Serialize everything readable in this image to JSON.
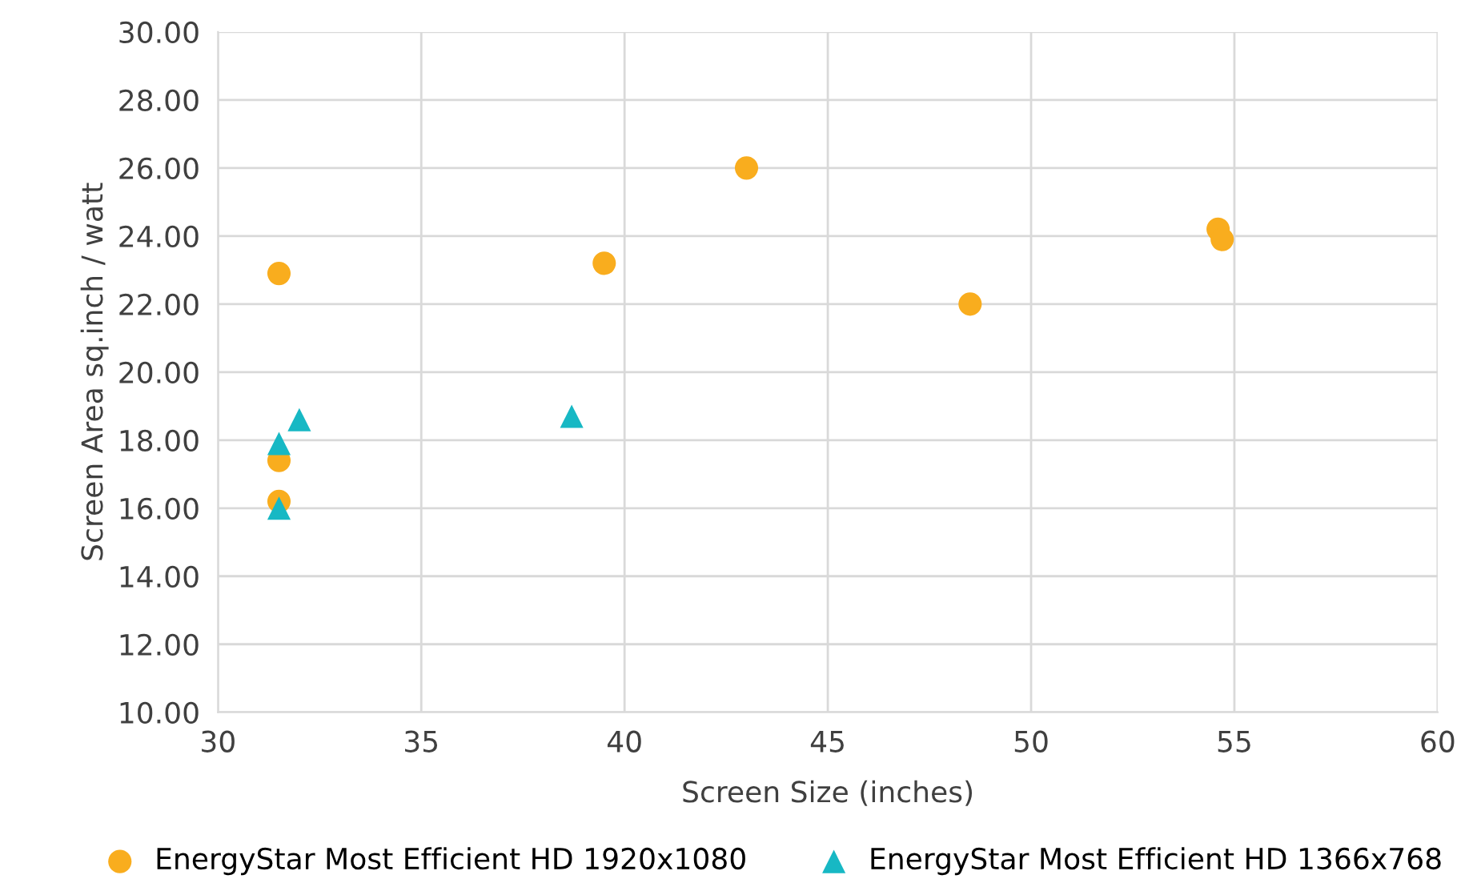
{
  "chart_data": {
    "type": "scatter",
    "xlabel": "Screen Size (inches)",
    "ylabel": "Screen Area sq.inch / watt",
    "xlim": [
      30,
      60
    ],
    "xticks": [
      30,
      35,
      40,
      45,
      50,
      55,
      60
    ],
    "ylim": [
      10,
      30
    ],
    "yticks": [
      {
        "value": 10,
        "label": "10.00"
      },
      {
        "value": 12,
        "label": "12.00"
      },
      {
        "value": 14,
        "label": "14.00"
      },
      {
        "value": 16,
        "label": "16.00"
      },
      {
        "value": 18,
        "label": "18.00"
      },
      {
        "value": 20,
        "label": "20.00"
      },
      {
        "value": 22,
        "label": "22.00"
      },
      {
        "value": 24,
        "label": "24.00"
      },
      {
        "value": 26,
        "label": "26.00"
      },
      {
        "value": 28,
        "label": "28.00"
      },
      {
        "value": 30,
        "label": "30.00"
      }
    ],
    "grid": true,
    "legend": "bottom",
    "series": [
      {
        "name": "EnergyStar Most Efficient HD 1920x1080",
        "color": "#f9ad1e",
        "marker": "circle",
        "x": [
          31.5,
          31.5,
          31.5,
          39.5,
          43,
          48.5,
          54.6,
          54.7
        ],
        "values": [
          22.9,
          17.4,
          16.2,
          23.2,
          26.0,
          22.0,
          24.2,
          23.9
        ]
      },
      {
        "name": "EnergyStar Most Efficient HD 1366x768",
        "color": "#17b8c4",
        "marker": "triangle",
        "x": [
          31.5,
          32,
          31.5,
          38.7
        ],
        "values": [
          17.9,
          18.6,
          16.0,
          18.7
        ]
      }
    ]
  }
}
